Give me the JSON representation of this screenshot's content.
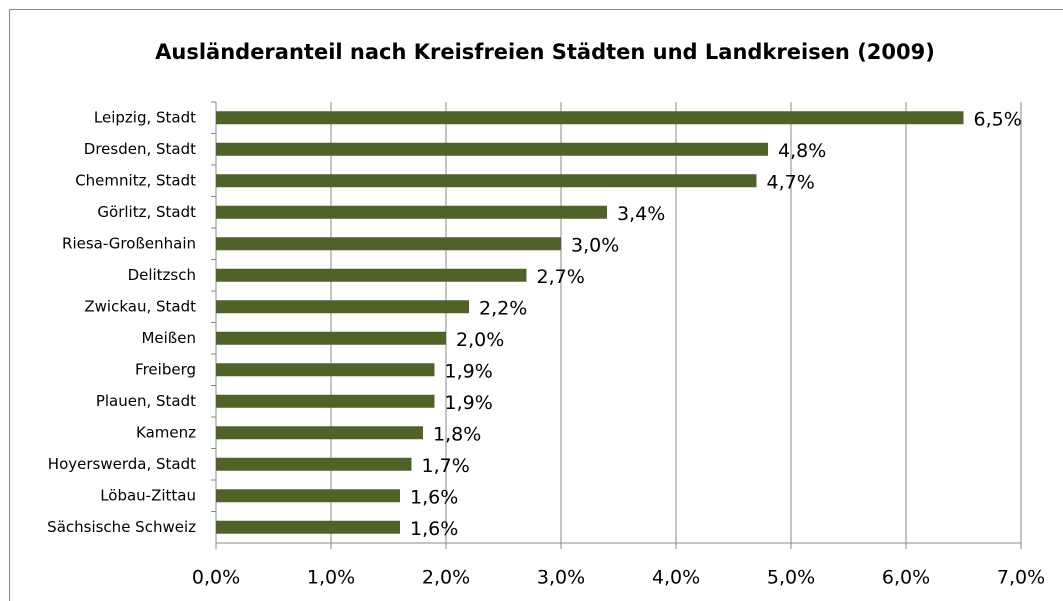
{
  "chart_data": {
    "type": "bar",
    "orientation": "horizontal",
    "title": "Ausländeranteil nach Kreisfreien Städten und Landkreisen (2009)",
    "categories": [
      "Leipzig, Stadt",
      "Dresden, Stadt",
      "Chemnitz, Stadt",
      "Görlitz, Stadt",
      "Riesa-Großenhain",
      "Delitzsch",
      "Zwickau, Stadt",
      "Meißen",
      "Freiberg",
      "Plauen, Stadt",
      "Kamenz",
      "Hoyerswerda, Stadt",
      "Löbau-Zittau",
      "Sächsische Schweiz"
    ],
    "values": [
      6.5,
      4.8,
      4.7,
      3.4,
      3.0,
      2.7,
      2.2,
      2.0,
      1.9,
      1.9,
      1.8,
      1.7,
      1.6,
      1.6
    ],
    "value_labels": [
      "6,5%",
      "4,8%",
      "4,7%",
      "3,4%",
      "3,0%",
      "2,7%",
      "2,2%",
      "2,0%",
      "1,9%",
      "1,9%",
      "1,8%",
      "1,7%",
      "1,6%",
      "1,6%"
    ],
    "color": "#4f6228",
    "xlim": [
      0,
      7
    ],
    "xticks": [
      {
        "value": 0,
        "label": "0,0%"
      },
      {
        "value": 1,
        "label": "1,0%"
      },
      {
        "value": 2,
        "label": "2,0%"
      },
      {
        "value": 3,
        "label": "3,0%"
      },
      {
        "value": 4,
        "label": "4,0%"
      },
      {
        "value": 5,
        "label": "5,0%"
      },
      {
        "value": 6,
        "label": "6,0%"
      },
      {
        "value": 7,
        "label": "7,0%"
      }
    ],
    "grid": true
  }
}
